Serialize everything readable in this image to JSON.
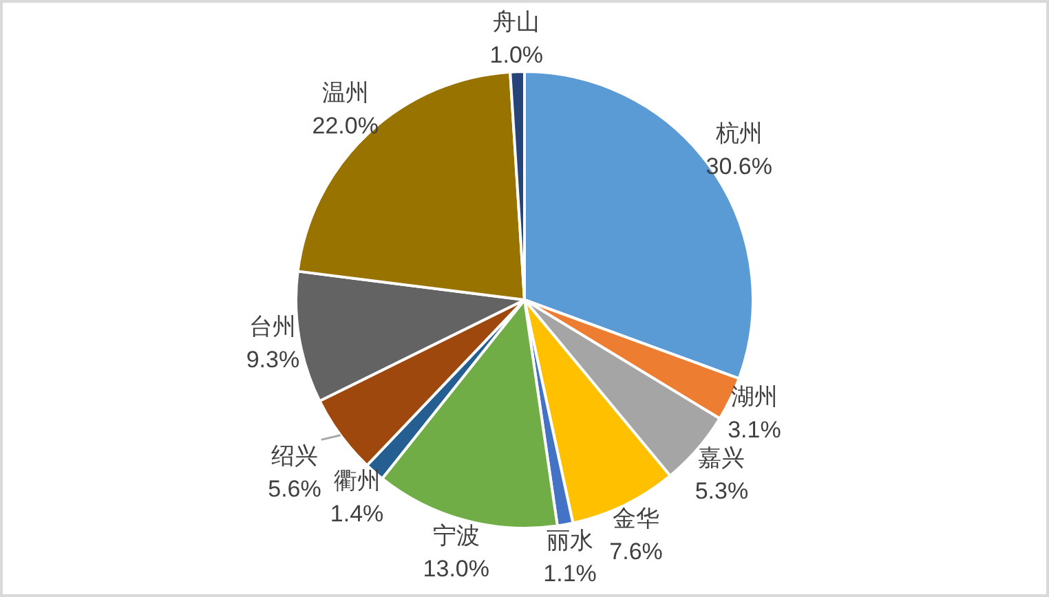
{
  "chart_data": {
    "type": "pie",
    "categories": [
      "杭州",
      "湖州",
      "嘉兴",
      "金华",
      "丽水",
      "宁波",
      "衢州",
      "绍兴",
      "台州",
      "温州",
      "舟山"
    ],
    "values": [
      30.6,
      3.1,
      5.3,
      7.6,
      1.1,
      13.0,
      1.4,
      5.6,
      9.3,
      22.0,
      1.0
    ],
    "value_labels": [
      "30.6%",
      "3.1%",
      "5.3%",
      "7.6%",
      "1.1%",
      "13.0%",
      "1.4%",
      "5.6%",
      "9.3%",
      "22.0%",
      "1.0%"
    ],
    "colors": [
      "#5b9bd5",
      "#ed7d31",
      "#a5a5a5",
      "#ffc000",
      "#4472c4",
      "#70ad47",
      "#255e91",
      "#9e480e",
      "#636363",
      "#997300",
      "#264478"
    ]
  }
}
